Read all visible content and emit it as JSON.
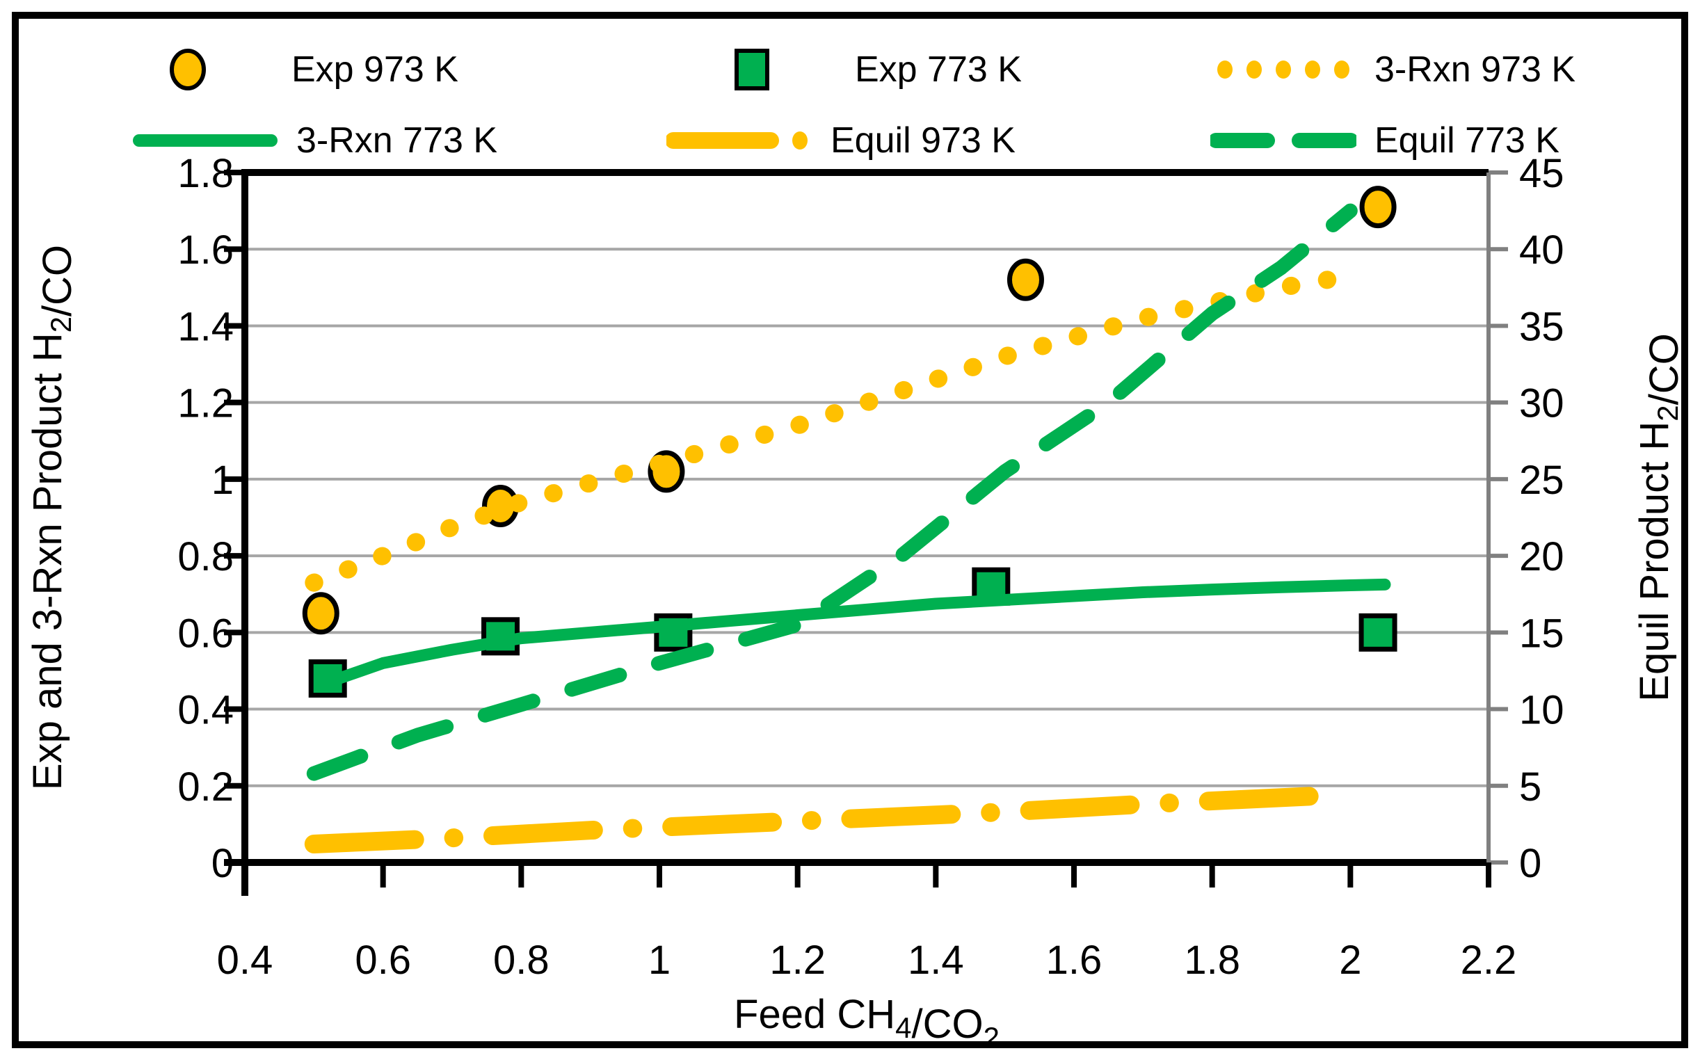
{
  "colors": {
    "gold": "#FFC000",
    "green": "#00B050",
    "grid": "#A6A6A6",
    "axis": "#000000",
    "right_axis_line": "#808080",
    "text": "#000000",
    "background": "#FFFFFF",
    "figure_border": "#000000"
  },
  "legend": {
    "items": [
      {
        "label": "Exp 973 K",
        "marker": "circle",
        "color": "#FFC000"
      },
      {
        "label": "Exp 773 K",
        "marker": "square",
        "color": "#00B050"
      },
      {
        "label": "3-Rxn 973 K",
        "marker": "dotted",
        "color": "#FFC000"
      },
      {
        "label": "3-Rxn 773 K",
        "marker": "solid",
        "color": "#00B050"
      },
      {
        "label": "Equil 973 K",
        "marker": "dash-dot",
        "color": "#FFC000"
      },
      {
        "label": "Equil 773 K",
        "marker": "dashed",
        "color": "#00B050"
      }
    ]
  },
  "chart_data": {
    "type": "line",
    "grid": "horizontal-only",
    "legend_position": "top",
    "x_axis": {
      "title": "Feed CH4/CO2",
      "title_segments": [
        {
          "t": "Feed CH",
          "sub": false
        },
        {
          "t": "4",
          "sub": true
        },
        {
          "t": "/CO",
          "sub": false
        },
        {
          "t": "2",
          "sub": true
        }
      ],
      "min": 0.4,
      "max": 2.2,
      "tick_values": [
        0.4,
        0.6,
        0.8,
        1,
        1.2,
        1.4,
        1.6,
        1.8,
        2,
        2.2
      ],
      "tick_labels": [
        "0.4",
        "0.6",
        "0.8",
        "1",
        "1.2",
        "1.4",
        "1.6",
        "1.8",
        "2",
        "2.2"
      ]
    },
    "left_axis": {
      "title": "Exp and 3-Rxn Product H2/CO",
      "title_segments": [
        {
          "t": "Exp and 3-Rxn Product H",
          "sub": false
        },
        {
          "t": "2",
          "sub": true
        },
        {
          "t": "/CO",
          "sub": false
        }
      ],
      "min": 0,
      "max": 1.8,
      "tick_values": [
        0,
        0.2,
        0.4,
        0.6,
        0.8,
        1,
        1.2,
        1.4,
        1.6,
        1.8
      ],
      "tick_labels": [
        "0",
        "0.2",
        "0.4",
        "0.6",
        "0.8",
        "1",
        "1.2",
        "1.4",
        "1.6",
        "1.8"
      ]
    },
    "right_axis": {
      "title": "Equil Product H2/CO",
      "title_segments": [
        {
          "t": "Equil Product H",
          "sub": false
        },
        {
          "t": "2",
          "sub": true
        },
        {
          "t": "/CO",
          "sub": false
        }
      ],
      "min": 0,
      "max": 45,
      "tick_values": [
        0,
        5,
        10,
        15,
        20,
        25,
        30,
        35,
        40,
        45
      ],
      "tick_labels": [
        "0",
        "5",
        "10",
        "15",
        "20",
        "25",
        "30",
        "35",
        "40",
        "45"
      ]
    },
    "series": [
      {
        "name": "Exp 973 K",
        "type": "scatter",
        "marker": "circle",
        "color": "#FFC000",
        "axis": "left",
        "points": [
          [
            0.51,
            0.65
          ],
          [
            0.77,
            0.93
          ],
          [
            1.01,
            1.02
          ],
          [
            1.53,
            1.52
          ],
          [
            2.04,
            1.71
          ]
        ]
      },
      {
        "name": "Exp 773 K",
        "type": "scatter",
        "marker": "square",
        "color": "#00B050",
        "axis": "left",
        "points": [
          [
            0.52,
            0.48
          ],
          [
            0.77,
            0.59
          ],
          [
            1.02,
            0.6
          ],
          [
            1.48,
            0.72
          ],
          [
            2.04,
            0.6
          ]
        ]
      },
      {
        "name": "3-Rxn 973 K",
        "type": "line",
        "style": "dotted",
        "color": "#FFC000",
        "axis": "left",
        "points": [
          [
            0.5,
            0.73
          ],
          [
            0.6,
            0.8
          ],
          [
            0.7,
            0.875
          ],
          [
            0.8,
            0.94
          ],
          [
            0.9,
            0.99
          ],
          [
            1.0,
            1.04
          ],
          [
            1.1,
            1.09
          ],
          [
            1.2,
            1.14
          ],
          [
            1.3,
            1.2
          ],
          [
            1.4,
            1.26
          ],
          [
            1.5,
            1.32
          ],
          [
            1.6,
            1.37
          ],
          [
            1.7,
            1.42
          ],
          [
            1.8,
            1.46
          ],
          [
            1.9,
            1.5
          ],
          [
            2.0,
            1.53
          ]
        ]
      },
      {
        "name": "3-Rxn 773 K",
        "type": "line",
        "style": "solid",
        "color": "#00B050",
        "axis": "left",
        "points": [
          [
            0.52,
            0.47
          ],
          [
            0.6,
            0.52
          ],
          [
            0.7,
            0.555
          ],
          [
            0.8,
            0.585
          ],
          [
            0.9,
            0.6
          ],
          [
            1.0,
            0.615
          ],
          [
            1.1,
            0.63
          ],
          [
            1.2,
            0.645
          ],
          [
            1.3,
            0.66
          ],
          [
            1.4,
            0.675
          ],
          [
            1.5,
            0.685
          ],
          [
            1.6,
            0.695
          ],
          [
            1.7,
            0.705
          ],
          [
            1.8,
            0.712
          ],
          [
            1.9,
            0.718
          ],
          [
            2.0,
            0.723
          ],
          [
            2.05,
            0.725
          ]
        ]
      },
      {
        "name": "Equil 973 K",
        "type": "line",
        "style": "dash-dot",
        "color": "#FFC000",
        "axis": "right",
        "points": [
          [
            0.5,
            1.2
          ],
          [
            0.7,
            1.6
          ],
          [
            0.9,
            2.1
          ],
          [
            1.1,
            2.5
          ],
          [
            1.3,
            2.9
          ],
          [
            1.5,
            3.3
          ],
          [
            1.7,
            3.8
          ],
          [
            1.98,
            4.4
          ]
        ]
      },
      {
        "name": "Equil 773 K",
        "type": "line",
        "style": "dashed",
        "color": "#00B050",
        "axis": "right",
        "points": [
          [
            0.5,
            5.8
          ],
          [
            0.65,
            8.3
          ],
          [
            0.8,
            10.3
          ],
          [
            1.0,
            13.0
          ],
          [
            1.2,
            15.5
          ],
          [
            1.35,
            20.0
          ],
          [
            1.5,
            25.5
          ],
          [
            1.65,
            30.0
          ],
          [
            1.8,
            35.8
          ],
          [
            1.9,
            38.8
          ],
          [
            2.0,
            42.5
          ]
        ]
      }
    ]
  }
}
